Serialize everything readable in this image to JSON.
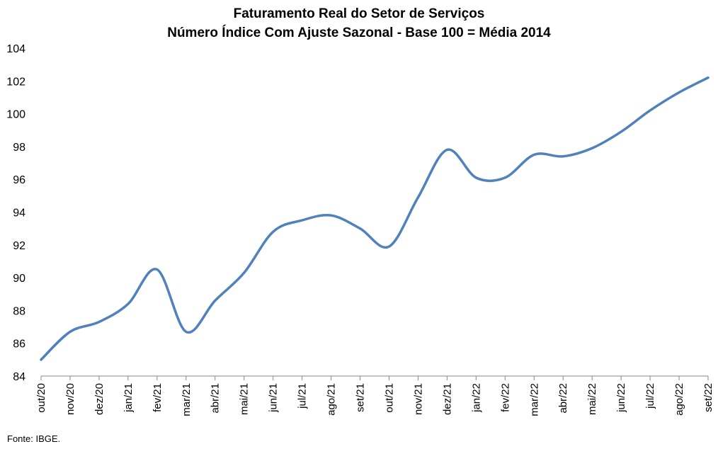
{
  "chart_data": {
    "type": "line",
    "title": "Faturamento Real do Setor de Serviços",
    "subtitle": "Número Índice Com Ajuste Sazonal - Base 100 = Média 2014",
    "categories": [
      "out/20",
      "nov/20",
      "dez/20",
      "jan/21",
      "fev/21",
      "mar/21",
      "abr/21",
      "mai/21",
      "jun/21",
      "jul/21",
      "ago/21",
      "set/21",
      "out/21",
      "nov/21",
      "dez/21",
      "jan/22",
      "fev/22",
      "mar/22",
      "abr/22",
      "mai/22",
      "jun/22",
      "jul/22",
      "ago/22",
      "set/22"
    ],
    "series": [
      {
        "values": [
          85.0,
          86.7,
          87.3,
          88.4,
          90.5,
          86.7,
          88.6,
          90.3,
          92.8,
          93.5,
          93.8,
          93.0,
          91.9,
          94.9,
          97.8,
          96.1,
          96.1,
          97.5,
          97.4,
          97.9,
          98.9,
          100.2,
          101.3,
          102.2
        ],
        "color": "#4F81BD"
      }
    ],
    "ylim": [
      84,
      104
    ],
    "yticks": [
      "84",
      "86",
      "88",
      "90",
      "92",
      "94",
      "96",
      "98",
      "100",
      "102",
      "104"
    ],
    "grid": false,
    "legend": "none"
  },
  "source": "Fonte: IBGE."
}
